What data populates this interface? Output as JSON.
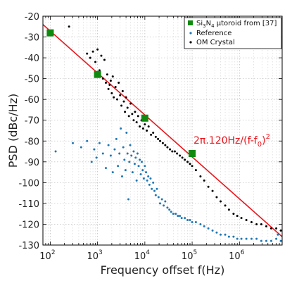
{
  "chart_data": {
    "type": "scatter",
    "xlabel": "Frequency offset f(Hz)",
    "ylabel": "PSD (dBc/Hz)",
    "xscale": "log",
    "xlim": [
      70,
      8000000
    ],
    "ylim": [
      -130,
      -20
    ],
    "yticks": [
      -20,
      -30,
      -40,
      -50,
      -60,
      -70,
      -80,
      -90,
      -100,
      -110,
      -120,
      -130
    ],
    "xticks": [
      {
        "value": 100,
        "base": "10",
        "exp": "2"
      },
      {
        "value": 1000,
        "base": "10",
        "exp": "3"
      },
      {
        "value": 10000,
        "base": "10",
        "exp": "4"
      },
      {
        "value": 100000,
        "base": "10",
        "exp": "5"
      },
      {
        "value": 1000000,
        "base": "10",
        "exp": "6"
      }
    ],
    "grid": true,
    "legend_position": "top-right",
    "series": [
      {
        "name_parts": {
          "pre": "Si",
          "sub1": "3",
          "mid": "N",
          "sub2": "4",
          "post": "  μtoroid from [37]"
        },
        "marker": "square",
        "color": "#0f8a0f",
        "points": [
          [
            100,
            -28
          ],
          [
            1000,
            -48
          ],
          [
            10000,
            -69
          ],
          [
            100000,
            -86
          ]
        ]
      },
      {
        "name": "Reference",
        "marker": "dot",
        "color": "#1f77b4",
        "points": [
          [
            130,
            -85
          ],
          [
            300,
            -81
          ],
          [
            450,
            -83
          ],
          [
            600,
            -80
          ],
          [
            750,
            -90
          ],
          [
            850,
            -84
          ],
          [
            950,
            -88
          ],
          [
            1100,
            -81
          ],
          [
            1300,
            -86
          ],
          [
            1500,
            -93
          ],
          [
            1700,
            -82
          ],
          [
            1900,
            -87
          ],
          [
            2100,
            -95
          ],
          [
            2300,
            -84
          ],
          [
            2500,
            -79
          ],
          [
            2700,
            -92
          ],
          [
            2900,
            -86
          ],
          [
            3100,
            -74
          ],
          [
            3300,
            -97
          ],
          [
            3500,
            -83
          ],
          [
            3700,
            -89
          ],
          [
            3900,
            -94
          ],
          [
            4100,
            -76
          ],
          [
            4300,
            -86
          ],
          [
            4500,
            -108
          ],
          [
            4700,
            -90
          ],
          [
            4900,
            -82
          ],
          [
            5200,
            -87
          ],
          [
            5500,
            -95
          ],
          [
            5800,
            -85
          ],
          [
            6100,
            -91
          ],
          [
            6400,
            -88
          ],
          [
            6700,
            -99
          ],
          [
            7000,
            -86
          ],
          [
            7400,
            -92
          ],
          [
            7800,
            -89
          ],
          [
            8200,
            -96
          ],
          [
            8600,
            -90
          ],
          [
            9000,
            -94
          ],
          [
            9500,
            -98
          ],
          [
            10000,
            -92
          ],
          [
            10600,
            -95
          ],
          [
            11200,
            -99
          ],
          [
            11800,
            -97
          ],
          [
            12500,
            -101
          ],
          [
            13200,
            -98
          ],
          [
            14000,
            -103
          ],
          [
            15000,
            -100
          ],
          [
            16000,
            -104
          ],
          [
            17000,
            -106
          ],
          [
            18000,
            -103
          ],
          [
            19500,
            -107
          ],
          [
            21000,
            -110
          ],
          [
            23000,
            -108
          ],
          [
            25000,
            -111
          ],
          [
            27000,
            -109
          ],
          [
            30000,
            -112
          ],
          [
            33000,
            -113
          ],
          [
            36000,
            -114
          ],
          [
            40000,
            -115
          ],
          [
            45000,
            -115
          ],
          [
            50000,
            -116
          ],
          [
            55000,
            -116
          ],
          [
            60000,
            -117
          ],
          [
            70000,
            -117
          ],
          [
            80000,
            -118
          ],
          [
            90000,
            -118
          ],
          [
            100000,
            -119
          ],
          [
            120000,
            -119
          ],
          [
            150000,
            -120
          ],
          [
            180000,
            -121
          ],
          [
            220000,
            -122
          ],
          [
            270000,
            -123
          ],
          [
            330000,
            -124
          ],
          [
            400000,
            -125
          ],
          [
            500000,
            -125
          ],
          [
            600000,
            -126
          ],
          [
            750000,
            -126
          ],
          [
            900000,
            -127
          ],
          [
            1100000,
            -127
          ],
          [
            1400000,
            -127
          ],
          [
            1800000,
            -127
          ],
          [
            2300000,
            -127
          ],
          [
            2900000,
            -128
          ],
          [
            3700000,
            -128
          ],
          [
            4700000,
            -128
          ],
          [
            6000000,
            -127
          ],
          [
            6500000,
            -125
          ],
          [
            7500000,
            -128
          ]
        ]
      },
      {
        "name": "OM Crystal",
        "marker": "dot",
        "color": "#000000",
        "points": [
          [
            250,
            -25
          ],
          [
            600,
            -38
          ],
          [
            700,
            -40
          ],
          [
            800,
            -37
          ],
          [
            900,
            -42
          ],
          [
            1000,
            -36
          ],
          [
            1100,
            -46
          ],
          [
            1200,
            -39
          ],
          [
            1300,
            -50
          ],
          [
            1400,
            -41
          ],
          [
            1500,
            -52
          ],
          [
            1600,
            -48
          ],
          [
            1700,
            -55
          ],
          [
            1800,
            -53
          ],
          [
            1900,
            -51
          ],
          [
            2000,
            -57
          ],
          [
            2100,
            -49
          ],
          [
            2200,
            -59
          ],
          [
            2400,
            -54
          ],
          [
            2600,
            -60
          ],
          [
            2800,
            -52
          ],
          [
            3000,
            -58
          ],
          [
            3200,
            -63
          ],
          [
            3400,
            -56
          ],
          [
            3600,
            -61
          ],
          [
            3800,
            -66
          ],
          [
            4000,
            -59
          ],
          [
            4300,
            -64
          ],
          [
            4600,
            -68
          ],
          [
            5000,
            -62
          ],
          [
            5400,
            -67
          ],
          [
            5800,
            -70
          ],
          [
            6200,
            -66
          ],
          [
            6700,
            -71
          ],
          [
            7200,
            -68
          ],
          [
            7800,
            -73
          ],
          [
            8500,
            -70
          ],
          [
            9200,
            -74
          ],
          [
            10000,
            -72
          ],
          [
            11000,
            -75
          ],
          [
            12000,
            -73
          ],
          [
            13500,
            -77
          ],
          [
            15000,
            -76
          ],
          [
            17000,
            -78
          ],
          [
            19000,
            -79
          ],
          [
            21000,
            -80
          ],
          [
            24000,
            -81
          ],
          [
            27000,
            -82
          ],
          [
            30000,
            -83
          ],
          [
            34000,
            -84
          ],
          [
            38000,
            -85
          ],
          [
            43000,
            -85
          ],
          [
            48000,
            -86
          ],
          [
            55000,
            -87
          ],
          [
            62000,
            -88
          ],
          [
            70000,
            -89
          ],
          [
            80000,
            -90
          ],
          [
            90000,
            -91
          ],
          [
            100000,
            -92
          ],
          [
            120000,
            -94
          ],
          [
            150000,
            -97
          ],
          [
            180000,
            -99
          ],
          [
            220000,
            -102
          ],
          [
            270000,
            -104
          ],
          [
            330000,
            -107
          ],
          [
            400000,
            -109
          ],
          [
            500000,
            -111
          ],
          [
            600000,
            -113
          ],
          [
            750000,
            -115
          ],
          [
            900000,
            -116
          ],
          [
            1100000,
            -117
          ],
          [
            1400000,
            -118
          ],
          [
            1800000,
            -119
          ],
          [
            2300000,
            -120
          ],
          [
            2900000,
            -120
          ],
          [
            3700000,
            -121
          ],
          [
            4700000,
            -122
          ],
          [
            6000000,
            -122
          ],
          [
            7500000,
            -123
          ]
        ]
      }
    ],
    "fit_line": {
      "color": "#e8151b",
      "points": [
        [
          70,
          -24
        ],
        [
          8000000,
          -126
        ]
      ],
      "label_parts": {
        "pre": "2π.120Hz/(f-f",
        "sub": "0",
        "mid": ")",
        "sup": "2"
      }
    }
  }
}
